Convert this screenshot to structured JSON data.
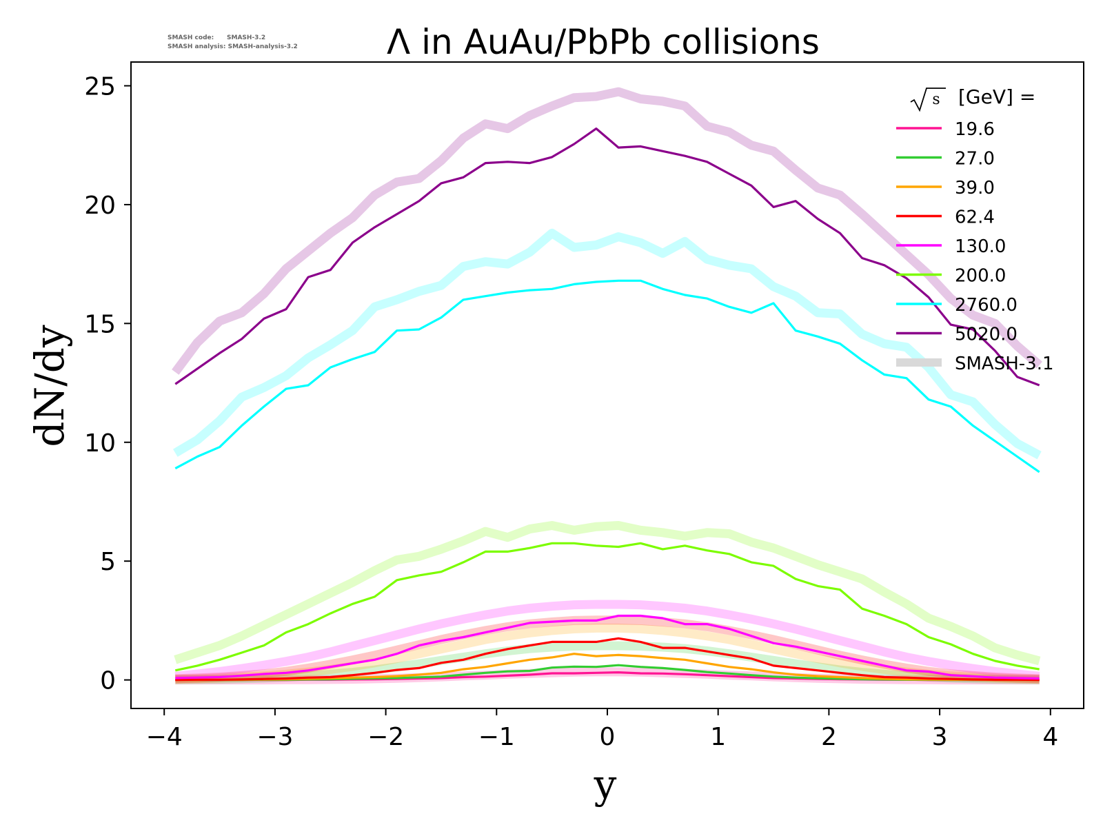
{
  "version_info": {
    "code_label": "SMASH code:",
    "code_value": "SMASH-3.2",
    "analysis_label": "SMASH analysis:",
    "analysis_value": "SMASH-analysis-3.2"
  },
  "chart_data": {
    "type": "line",
    "title": "Λ in AuAu/PbPb collisions",
    "xlabel": "y",
    "ylabel": "dN/dy",
    "xlim": [
      -4.3,
      4.3
    ],
    "ylim": [
      -1.2,
      26.0
    ],
    "xticks": [
      -4,
      -3,
      -2,
      -1,
      0,
      1,
      2,
      3,
      4
    ],
    "xtick_labels": [
      "−4",
      "−3",
      "−2",
      "−1",
      "0",
      "1",
      "2",
      "3",
      "4"
    ],
    "yticks": [
      0,
      5,
      10,
      15,
      20,
      25
    ],
    "ytick_labels": [
      "0",
      "5",
      "10",
      "15",
      "20",
      "25"
    ],
    "grid": false,
    "legend": {
      "placement": "top-right",
      "title_prefix": "√s",
      "title_suffix": "[GeV] =",
      "reference_label": "SMASH-3.1",
      "reference_color": "#d9d9d9"
    },
    "x": [
      -3.9,
      -3.7,
      -3.5,
      -3.3,
      -3.1,
      -2.9,
      -2.7,
      -2.5,
      -2.3,
      -2.1,
      -1.9,
      -1.7,
      -1.5,
      -1.3,
      -1.1,
      -0.9,
      -0.7,
      -0.5,
      -0.3,
      -0.1,
      0.1,
      0.3,
      0.5,
      0.7,
      0.9,
      1.1,
      1.3,
      1.5,
      1.7,
      1.9,
      2.1,
      2.3,
      2.5,
      2.7,
      2.9,
      3.1,
      3.3,
      3.5,
      3.7,
      3.9
    ],
    "series": [
      {
        "name": "19.6",
        "color": "#ff1493",
        "values": [
          0.0,
          0.0,
          0.0,
          0.0,
          0.0,
          0.0,
          0.01,
          0.01,
          0.02,
          0.03,
          0.04,
          0.06,
          0.08,
          0.12,
          0.14,
          0.18,
          0.22,
          0.28,
          0.28,
          0.3,
          0.32,
          0.28,
          0.27,
          0.24,
          0.2,
          0.16,
          0.12,
          0.08,
          0.06,
          0.04,
          0.03,
          0.02,
          0.01,
          0.01,
          0.0,
          0.0,
          0.0,
          0.0,
          0.0,
          0.0
        ],
        "reference": [
          0.0,
          0.0,
          0.0,
          0.0,
          0.0,
          0.01,
          0.01,
          0.02,
          0.03,
          0.05,
          0.07,
          0.1,
          0.13,
          0.17,
          0.2,
          0.24,
          0.27,
          0.3,
          0.33,
          0.34,
          0.34,
          0.33,
          0.3,
          0.27,
          0.24,
          0.2,
          0.17,
          0.13,
          0.1,
          0.07,
          0.05,
          0.03,
          0.02,
          0.01,
          0.01,
          0.0,
          0.0,
          0.0,
          0.0,
          0.0
        ]
      },
      {
        "name": "27.0",
        "color": "#32cd32",
        "values": [
          0.0,
          0.0,
          0.0,
          0.0,
          0.01,
          0.01,
          0.02,
          0.03,
          0.05,
          0.07,
          0.08,
          0.11,
          0.14,
          0.22,
          0.3,
          0.36,
          0.38,
          0.52,
          0.56,
          0.55,
          0.62,
          0.55,
          0.5,
          0.42,
          0.33,
          0.27,
          0.2,
          0.14,
          0.1,
          0.07,
          0.05,
          0.03,
          0.02,
          0.01,
          0.01,
          0.0,
          0.0,
          0.0,
          0.0,
          0.0
        ],
        "reference": [
          0.01,
          0.02,
          0.03,
          0.05,
          0.08,
          0.12,
          0.17,
          0.24,
          0.32,
          0.42,
          0.55,
          0.68,
          0.82,
          0.96,
          1.1,
          1.22,
          1.32,
          1.38,
          1.42,
          1.44,
          1.44,
          1.42,
          1.38,
          1.32,
          1.22,
          1.1,
          0.96,
          0.82,
          0.68,
          0.55,
          0.42,
          0.32,
          0.24,
          0.17,
          0.12,
          0.08,
          0.05,
          0.03,
          0.02,
          0.01
        ]
      },
      {
        "name": "39.0",
        "color": "#ffa500",
        "values": [
          0.0,
          0.0,
          0.01,
          0.01,
          0.02,
          0.03,
          0.05,
          0.07,
          0.1,
          0.12,
          0.16,
          0.22,
          0.3,
          0.45,
          0.55,
          0.7,
          0.85,
          0.95,
          1.1,
          1.0,
          1.05,
          1.0,
          0.92,
          0.85,
          0.7,
          0.55,
          0.45,
          0.32,
          0.22,
          0.16,
          0.12,
          0.08,
          0.05,
          0.03,
          0.02,
          0.01,
          0.01,
          0.0,
          0.0,
          0.0
        ],
        "reference": [
          0.03,
          0.05,
          0.08,
          0.12,
          0.17,
          0.24,
          0.33,
          0.44,
          0.57,
          0.72,
          0.9,
          1.1,
          1.3,
          1.5,
          1.7,
          1.85,
          1.98,
          2.08,
          2.15,
          2.18,
          2.18,
          2.15,
          2.08,
          1.98,
          1.85,
          1.7,
          1.5,
          1.3,
          1.1,
          0.9,
          0.72,
          0.57,
          0.44,
          0.33,
          0.24,
          0.17,
          0.12,
          0.08,
          0.05,
          0.03
        ]
      },
      {
        "name": "62.4",
        "color": "#ff0000",
        "values": [
          0.0,
          0.01,
          0.01,
          0.02,
          0.04,
          0.06,
          0.1,
          0.12,
          0.2,
          0.3,
          0.42,
          0.5,
          0.72,
          0.85,
          1.1,
          1.3,
          1.45,
          1.6,
          1.6,
          1.6,
          1.75,
          1.6,
          1.35,
          1.35,
          1.2,
          1.05,
          0.9,
          0.6,
          0.5,
          0.4,
          0.3,
          0.2,
          0.12,
          0.1,
          0.06,
          0.04,
          0.02,
          0.01,
          0.01,
          0.0
        ],
        "reference": [
          0.05,
          0.08,
          0.12,
          0.18,
          0.26,
          0.36,
          0.5,
          0.66,
          0.84,
          1.04,
          1.26,
          1.48,
          1.7,
          1.9,
          2.08,
          2.24,
          2.36,
          2.44,
          2.5,
          2.52,
          2.52,
          2.5,
          2.44,
          2.36,
          2.24,
          2.08,
          1.9,
          1.7,
          1.48,
          1.26,
          1.04,
          0.84,
          0.66,
          0.5,
          0.36,
          0.26,
          0.18,
          0.12,
          0.08,
          0.05
        ]
      },
      {
        "name": "130.0",
        "color": "#ff00ff",
        "values": [
          0.08,
          0.1,
          0.12,
          0.18,
          0.25,
          0.3,
          0.4,
          0.55,
          0.7,
          0.85,
          1.1,
          1.45,
          1.65,
          1.8,
          2.0,
          2.2,
          2.4,
          2.45,
          2.5,
          2.5,
          2.7,
          2.7,
          2.6,
          2.35,
          2.35,
          2.15,
          1.85,
          1.55,
          1.4,
          1.2,
          1.0,
          0.8,
          0.6,
          0.4,
          0.35,
          0.2,
          0.15,
          0.1,
          0.08,
          0.06
        ],
        "reference": [
          0.15,
          0.25,
          0.35,
          0.48,
          0.62,
          0.78,
          0.96,
          1.18,
          1.42,
          1.66,
          1.9,
          2.14,
          2.36,
          2.56,
          2.74,
          2.9,
          3.02,
          3.1,
          3.16,
          3.18,
          3.18,
          3.16,
          3.1,
          3.02,
          2.9,
          2.74,
          2.56,
          2.36,
          2.14,
          1.9,
          1.66,
          1.42,
          1.18,
          0.96,
          0.78,
          0.62,
          0.48,
          0.35,
          0.25,
          0.15
        ]
      },
      {
        "name": "200.0",
        "color": "#7cfc00",
        "values": [
          0.4,
          0.6,
          0.85,
          1.15,
          1.45,
          2.0,
          2.35,
          2.8,
          3.2,
          3.5,
          4.2,
          4.4,
          4.55,
          4.95,
          5.4,
          5.4,
          5.55,
          5.75,
          5.75,
          5.65,
          5.6,
          5.75,
          5.5,
          5.65,
          5.45,
          5.3,
          4.95,
          4.8,
          4.25,
          3.95,
          3.8,
          3.0,
          2.7,
          2.35,
          1.8,
          1.5,
          1.1,
          0.8,
          0.6,
          0.45
        ],
        "reference": [
          0.85,
          1.15,
          1.45,
          1.85,
          2.3,
          2.75,
          3.2,
          3.65,
          4.1,
          4.6,
          5.05,
          5.2,
          5.5,
          5.85,
          6.25,
          6.0,
          6.35,
          6.5,
          6.3,
          6.45,
          6.5,
          6.3,
          6.2,
          6.05,
          6.2,
          6.15,
          5.8,
          5.55,
          5.2,
          4.85,
          4.55,
          4.25,
          3.7,
          3.2,
          2.6,
          2.25,
          1.85,
          1.35,
          1.05,
          0.8
        ]
      },
      {
        "name": "2760.0",
        "color": "#00ffff",
        "values": [
          8.9,
          9.4,
          9.8,
          10.7,
          11.5,
          12.25,
          12.4,
          13.15,
          13.5,
          13.8,
          14.7,
          14.75,
          15.25,
          16.0,
          16.15,
          16.3,
          16.4,
          16.45,
          16.65,
          16.75,
          16.8,
          16.8,
          16.45,
          16.2,
          16.05,
          15.7,
          15.45,
          15.85,
          14.7,
          14.45,
          14.15,
          13.45,
          12.85,
          12.7,
          11.8,
          11.5,
          10.7,
          10.05,
          9.4,
          8.75
        ],
        "reference": [
          9.55,
          10.1,
          10.9,
          11.9,
          12.3,
          12.8,
          13.55,
          14.1,
          14.7,
          15.7,
          16.0,
          16.35,
          16.6,
          17.4,
          17.6,
          17.5,
          18.0,
          18.8,
          18.2,
          18.3,
          18.65,
          18.4,
          17.95,
          18.45,
          17.7,
          17.45,
          17.3,
          16.55,
          16.15,
          15.45,
          15.4,
          14.55,
          14.15,
          14.0,
          13.15,
          12.0,
          11.7,
          10.75,
          9.95,
          9.45
        ]
      },
      {
        "name": "5020.0",
        "color": "#8b008b",
        "values": [
          12.45,
          13.1,
          13.75,
          14.35,
          15.2,
          15.6,
          16.95,
          17.25,
          18.4,
          19.05,
          19.6,
          20.15,
          20.9,
          21.15,
          21.75,
          21.8,
          21.75,
          22.0,
          22.55,
          23.2,
          22.4,
          22.45,
          22.25,
          22.05,
          21.8,
          21.3,
          20.8,
          19.9,
          20.15,
          19.4,
          18.8,
          17.75,
          17.45,
          16.9,
          16.1,
          14.95,
          14.75,
          13.85,
          12.75,
          12.4
        ],
        "reference": [
          12.95,
          14.2,
          15.1,
          15.45,
          16.25,
          17.3,
          18.05,
          18.8,
          19.45,
          20.4,
          20.95,
          21.1,
          21.85,
          22.8,
          23.4,
          23.2,
          23.75,
          24.15,
          24.5,
          24.55,
          24.75,
          24.45,
          24.35,
          24.15,
          23.3,
          23.05,
          22.5,
          22.25,
          21.45,
          20.7,
          20.4,
          19.6,
          18.75,
          17.9,
          17.05,
          16.05,
          15.35,
          15.0,
          14.05,
          13.25
        ]
      }
    ]
  }
}
